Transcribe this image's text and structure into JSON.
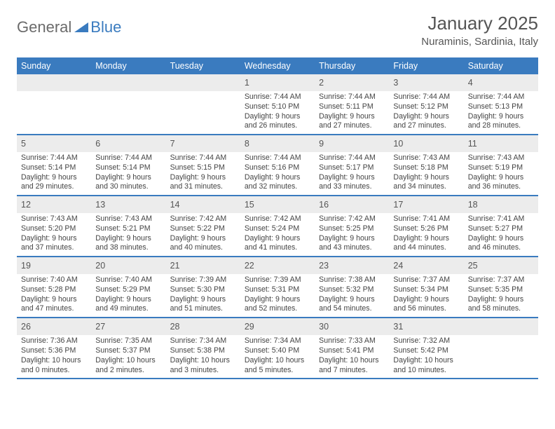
{
  "logo": {
    "gray": "General",
    "blue": "Blue"
  },
  "title": "January 2025",
  "location": "Nuraminis, Sardinia, Italy",
  "header_bg": "#3a7bbf",
  "weekdays": [
    "Sunday",
    "Monday",
    "Tuesday",
    "Wednesday",
    "Thursday",
    "Friday",
    "Saturday"
  ],
  "blank_leading": 3,
  "days": [
    {
      "n": "1",
      "sunrise": "7:44 AM",
      "sunset": "5:10 PM",
      "daylight": "9 hours and 26 minutes."
    },
    {
      "n": "2",
      "sunrise": "7:44 AM",
      "sunset": "5:11 PM",
      "daylight": "9 hours and 27 minutes."
    },
    {
      "n": "3",
      "sunrise": "7:44 AM",
      "sunset": "5:12 PM",
      "daylight": "9 hours and 27 minutes."
    },
    {
      "n": "4",
      "sunrise": "7:44 AM",
      "sunset": "5:13 PM",
      "daylight": "9 hours and 28 minutes."
    },
    {
      "n": "5",
      "sunrise": "7:44 AM",
      "sunset": "5:14 PM",
      "daylight": "9 hours and 29 minutes."
    },
    {
      "n": "6",
      "sunrise": "7:44 AM",
      "sunset": "5:14 PM",
      "daylight": "9 hours and 30 minutes."
    },
    {
      "n": "7",
      "sunrise": "7:44 AM",
      "sunset": "5:15 PM",
      "daylight": "9 hours and 31 minutes."
    },
    {
      "n": "8",
      "sunrise": "7:44 AM",
      "sunset": "5:16 PM",
      "daylight": "9 hours and 32 minutes."
    },
    {
      "n": "9",
      "sunrise": "7:44 AM",
      "sunset": "5:17 PM",
      "daylight": "9 hours and 33 minutes."
    },
    {
      "n": "10",
      "sunrise": "7:43 AM",
      "sunset": "5:18 PM",
      "daylight": "9 hours and 34 minutes."
    },
    {
      "n": "11",
      "sunrise": "7:43 AM",
      "sunset": "5:19 PM",
      "daylight": "9 hours and 36 minutes."
    },
    {
      "n": "12",
      "sunrise": "7:43 AM",
      "sunset": "5:20 PM",
      "daylight": "9 hours and 37 minutes."
    },
    {
      "n": "13",
      "sunrise": "7:43 AM",
      "sunset": "5:21 PM",
      "daylight": "9 hours and 38 minutes."
    },
    {
      "n": "14",
      "sunrise": "7:42 AM",
      "sunset": "5:22 PM",
      "daylight": "9 hours and 40 minutes."
    },
    {
      "n": "15",
      "sunrise": "7:42 AM",
      "sunset": "5:24 PM",
      "daylight": "9 hours and 41 minutes."
    },
    {
      "n": "16",
      "sunrise": "7:42 AM",
      "sunset": "5:25 PM",
      "daylight": "9 hours and 43 minutes."
    },
    {
      "n": "17",
      "sunrise": "7:41 AM",
      "sunset": "5:26 PM",
      "daylight": "9 hours and 44 minutes."
    },
    {
      "n": "18",
      "sunrise": "7:41 AM",
      "sunset": "5:27 PM",
      "daylight": "9 hours and 46 minutes."
    },
    {
      "n": "19",
      "sunrise": "7:40 AM",
      "sunset": "5:28 PM",
      "daylight": "9 hours and 47 minutes."
    },
    {
      "n": "20",
      "sunrise": "7:40 AM",
      "sunset": "5:29 PM",
      "daylight": "9 hours and 49 minutes."
    },
    {
      "n": "21",
      "sunrise": "7:39 AM",
      "sunset": "5:30 PM",
      "daylight": "9 hours and 51 minutes."
    },
    {
      "n": "22",
      "sunrise": "7:39 AM",
      "sunset": "5:31 PM",
      "daylight": "9 hours and 52 minutes."
    },
    {
      "n": "23",
      "sunrise": "7:38 AM",
      "sunset": "5:32 PM",
      "daylight": "9 hours and 54 minutes."
    },
    {
      "n": "24",
      "sunrise": "7:37 AM",
      "sunset": "5:34 PM",
      "daylight": "9 hours and 56 minutes."
    },
    {
      "n": "25",
      "sunrise": "7:37 AM",
      "sunset": "5:35 PM",
      "daylight": "9 hours and 58 minutes."
    },
    {
      "n": "26",
      "sunrise": "7:36 AM",
      "sunset": "5:36 PM",
      "daylight": "10 hours and 0 minutes."
    },
    {
      "n": "27",
      "sunrise": "7:35 AM",
      "sunset": "5:37 PM",
      "daylight": "10 hours and 2 minutes."
    },
    {
      "n": "28",
      "sunrise": "7:34 AM",
      "sunset": "5:38 PM",
      "daylight": "10 hours and 3 minutes."
    },
    {
      "n": "29",
      "sunrise": "7:34 AM",
      "sunset": "5:40 PM",
      "daylight": "10 hours and 5 minutes."
    },
    {
      "n": "30",
      "sunrise": "7:33 AM",
      "sunset": "5:41 PM",
      "daylight": "10 hours and 7 minutes."
    },
    {
      "n": "31",
      "sunrise": "7:32 AM",
      "sunset": "5:42 PM",
      "daylight": "10 hours and 10 minutes."
    }
  ],
  "labels": {
    "sunrise": "Sunrise:",
    "sunset": "Sunset:",
    "daylight": "Daylight:"
  }
}
